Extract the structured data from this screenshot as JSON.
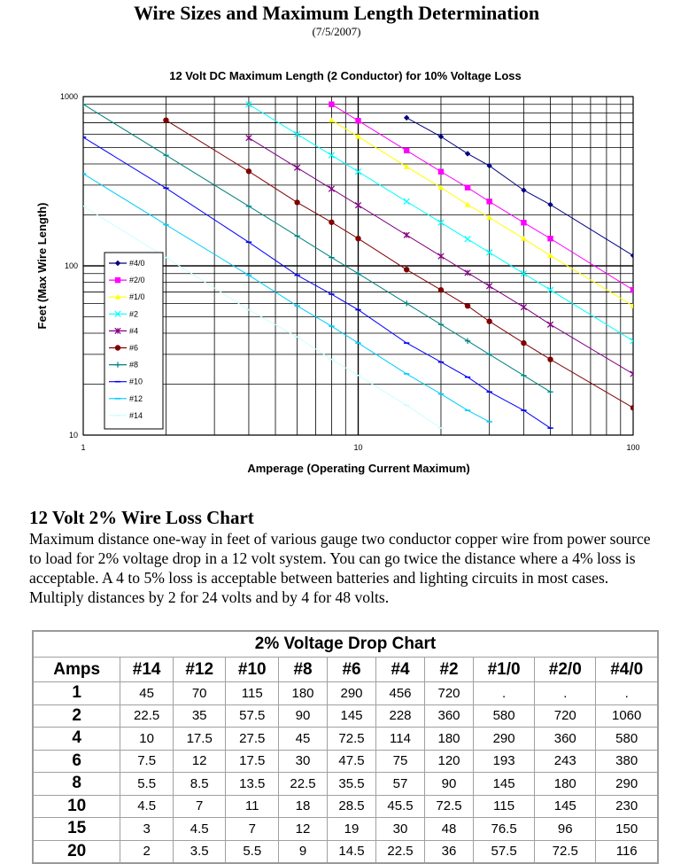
{
  "page": {
    "title": "Wire Sizes and Maximum Length Determination",
    "date": "(7/5/2007)"
  },
  "chart_data": {
    "type": "line",
    "title": "12 Volt DC Maximum Length (2 Conductor) for 10% Voltage Loss",
    "xlabel": "Amperage (Operating Current Maximum)",
    "ylabel": "Feet (Max Wire Length)",
    "xscale": "log",
    "yscale": "log",
    "xlim": [
      1,
      100
    ],
    "ylim": [
      10,
      1000
    ],
    "x_ticks": [
      "1",
      "10",
      "100"
    ],
    "y_ticks": [
      "10",
      "100",
      "1000"
    ],
    "grid": true,
    "legend_position": "left",
    "series": [
      {
        "name": "#4/0",
        "color": "#000080",
        "marker": "diamond",
        "x": [
          15,
          20,
          25,
          30,
          40,
          50,
          100
        ],
        "y": [
          750,
          580,
          460,
          390,
          280,
          230,
          115
        ]
      },
      {
        "name": "#2/0",
        "color": "#ff00ff",
        "marker": "square",
        "x": [
          8,
          10,
          15,
          20,
          25,
          30,
          40,
          50,
          100
        ],
        "y": [
          900,
          720,
          480,
          360,
          290,
          240,
          180,
          145,
          72
        ]
      },
      {
        "name": "#1/0",
        "color": "#ffff00",
        "marker": "triangle",
        "x": [
          8,
          10,
          15,
          20,
          25,
          30,
          40,
          50,
          100
        ],
        "y": [
          725,
          580,
          385,
          290,
          230,
          193,
          145,
          115,
          58
        ]
      },
      {
        "name": "#2",
        "color": "#00ffff",
        "marker": "x",
        "x": [
          4,
          6,
          8,
          10,
          15,
          20,
          25,
          30,
          40,
          50,
          100
        ],
        "y": [
          900,
          600,
          450,
          360,
          240,
          180,
          144,
          120,
          90,
          72,
          36
        ]
      },
      {
        "name": "#4",
        "color": "#800080",
        "marker": "star",
        "x": [
          4,
          6,
          8,
          10,
          15,
          20,
          25,
          30,
          40,
          50,
          100
        ],
        "y": [
          570,
          380,
          285,
          228,
          152,
          114,
          91,
          76,
          57,
          45,
          23
        ]
      },
      {
        "name": "#6",
        "color": "#800000",
        "marker": "circle",
        "x": [
          2,
          4,
          6,
          8,
          10,
          15,
          20,
          25,
          30,
          40,
          50,
          100
        ],
        "y": [
          725,
          362,
          237,
          181,
          145,
          95,
          72,
          58,
          47,
          35,
          28,
          14.5
        ]
      },
      {
        "name": "#8",
        "color": "#008080",
        "marker": "plus",
        "x": [
          1,
          2,
          4,
          6,
          8,
          10,
          15,
          20,
          25,
          30,
          40,
          50
        ],
        "y": [
          900,
          450,
          225,
          150,
          112,
          90,
          60,
          45,
          36,
          30,
          22.5,
          18
        ]
      },
      {
        "name": "#10",
        "color": "#0000ff",
        "marker": "dash",
        "x": [
          1,
          2,
          4,
          6,
          8,
          10,
          15,
          20,
          25,
          30,
          40,
          50
        ],
        "y": [
          575,
          288,
          138,
          88,
          68,
          55,
          35,
          27,
          22,
          18,
          14,
          11
        ]
      },
      {
        "name": "#12",
        "color": "#00ccff",
        "marker": "dash",
        "x": [
          1,
          2,
          4,
          6,
          8,
          10,
          15,
          20,
          25,
          30
        ],
        "y": [
          350,
          175,
          88,
          58,
          44,
          35,
          23,
          17.5,
          14,
          12
        ]
      },
      {
        "name": "#14",
        "color": "#ccffff",
        "marker": "dash",
        "x": [
          1,
          2,
          4,
          6,
          8,
          10,
          15,
          20
        ],
        "y": [
          225,
          112,
          55,
          38,
          28,
          22.5,
          15,
          11
        ]
      }
    ]
  },
  "section": {
    "heading": "12 Volt 2% Wire Loss Chart",
    "paragraph": "Maximum distance one-way in feet of various gauge two conductor copper wire from power source to load for 2% voltage drop in a 12 volt system. You can go twice the distance where a 4% loss is acceptable. A 4 to 5% loss is acceptable between batteries and lighting circuits in most cases.  Multiply distances by 2 for 24 volts and by 4 for 48 volts."
  },
  "table": {
    "caption": "2% Voltage Drop Chart",
    "headers": [
      "Amps",
      "#14",
      "#12",
      "#10",
      "#8",
      "#6",
      "#4",
      "#2",
      "#1/0",
      "#2/0",
      "#4/0"
    ],
    "rows": [
      [
        "1",
        "45",
        "70",
        "115",
        "180",
        "290",
        "456",
        "720",
        ".",
        ".",
        "."
      ],
      [
        "2",
        "22.5",
        "35",
        "57.5",
        "90",
        "145",
        "228",
        "360",
        "580",
        "720",
        "1060"
      ],
      [
        "4",
        "10",
        "17.5",
        "27.5",
        "45",
        "72.5",
        "114",
        "180",
        "290",
        "360",
        "580"
      ],
      [
        "6",
        "7.5",
        "12",
        "17.5",
        "30",
        "47.5",
        "75",
        "120",
        "193",
        "243",
        "380"
      ],
      [
        "8",
        "5.5",
        "8.5",
        "13.5",
        "22.5",
        "35.5",
        "57",
        "90",
        "145",
        "180",
        "290"
      ],
      [
        "10",
        "4.5",
        "7",
        "11",
        "18",
        "28.5",
        "45.5",
        "72.5",
        "115",
        "145",
        "230"
      ],
      [
        "15",
        "3",
        "4.5",
        "7",
        "12",
        "19",
        "30",
        "48",
        "76.5",
        "96",
        "150"
      ],
      [
        "20",
        "2",
        "3.5",
        "5.5",
        "9",
        "14.5",
        "22.5",
        "36",
        "57.5",
        "72.5",
        "116"
      ]
    ]
  }
}
